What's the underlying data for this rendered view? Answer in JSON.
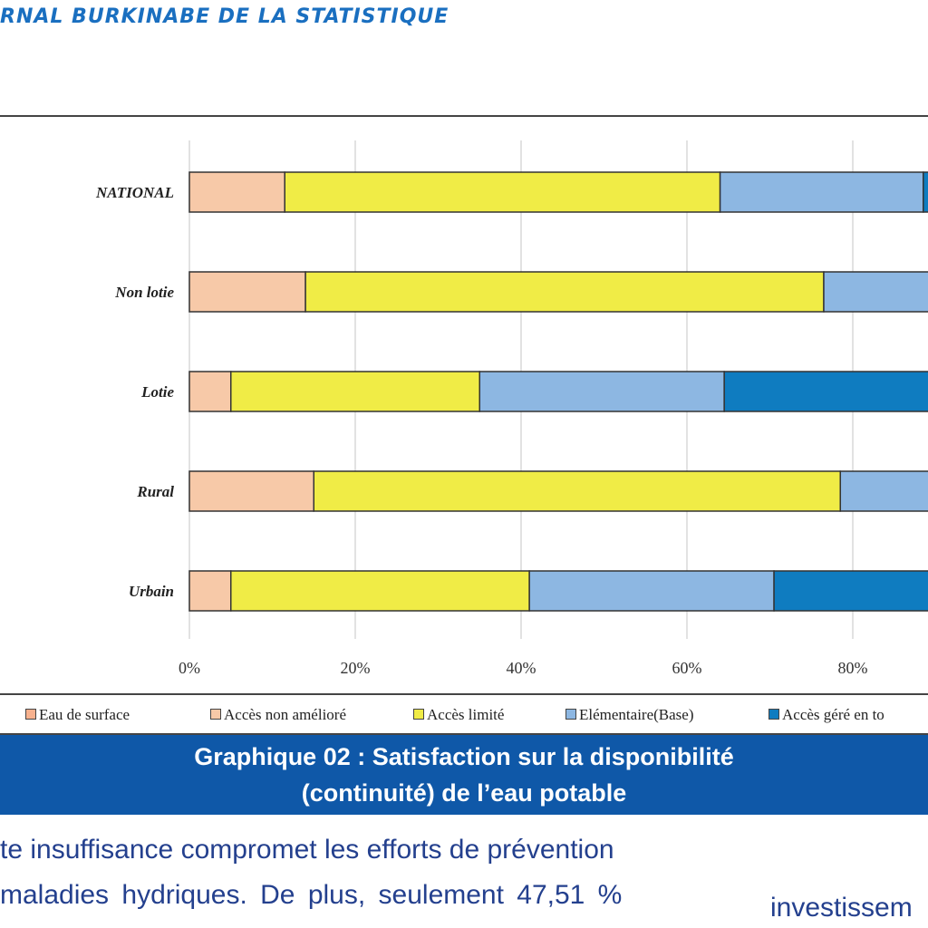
{
  "header": {
    "title": "RNAL BURKINABE DE LA STATISTIQUE"
  },
  "colors": {
    "header_text": "#1a6fc0",
    "caption_bg": "#0f58a8",
    "caption_text": "#ffffff",
    "body_text": "#24408e",
    "eau_de_surface": "#f7b18e",
    "acces_non_ameliore": "#f7c9a8",
    "acces_limite": "#f0ec46",
    "elementaire": "#8db7e2",
    "acces_gere": "#0f7cc0"
  },
  "chart_data": {
    "type": "bar",
    "orientation": "horizontal",
    "stacked": true,
    "categories": [
      "NATIONAL",
      "Non lotie",
      "Lotie",
      "Rural",
      "Urbain"
    ],
    "series": [
      {
        "name": "Eau de surface",
        "values": [
          0,
          0,
          0,
          0,
          0
        ]
      },
      {
        "name": "Accès non amélioré",
        "values": [
          11.5,
          14,
          5,
          15,
          5
        ]
      },
      {
        "name": "Accès limité",
        "values": [
          52.5,
          62.5,
          30,
          63.5,
          36
        ]
      },
      {
        "name": "Elémentaire(Base)",
        "values": [
          24.5,
          23.5,
          29.5,
          21.5,
          29.5
        ]
      },
      {
        "name": "Accès géré en toute sécurité",
        "values": [
          11.5,
          0,
          35.5,
          0,
          29.5
        ]
      }
    ],
    "x_ticks": [
      "0%",
      "20%",
      "40%",
      "60%",
      "80%"
    ],
    "xlim": [
      0,
      100
    ],
    "grid": true,
    "legend_position": "bottom"
  },
  "legend": {
    "items": [
      {
        "label": "Eau de surface",
        "color": "#f7b18e"
      },
      {
        "label": "Accès non amélioré",
        "color": "#f7c9a8"
      },
      {
        "label": "Accès limité",
        "color": "#f0ec46"
      },
      {
        "label": "Elémentaire(Base)",
        "color": "#8db7e2"
      },
      {
        "label": "Accès géré en to",
        "color": "#0f7cc0"
      }
    ]
  },
  "caption": {
    "line1": "Graphique 02 : Satisfaction sur la disponibilité",
    "line2": "(continuité) de l’eau potable"
  },
  "body": {
    "line1": "te insuffisance compromet les efforts de prévention",
    "line2": "maladies hydriques. De plus, seulement 47,51 %",
    "right_fragment": "investissem"
  }
}
